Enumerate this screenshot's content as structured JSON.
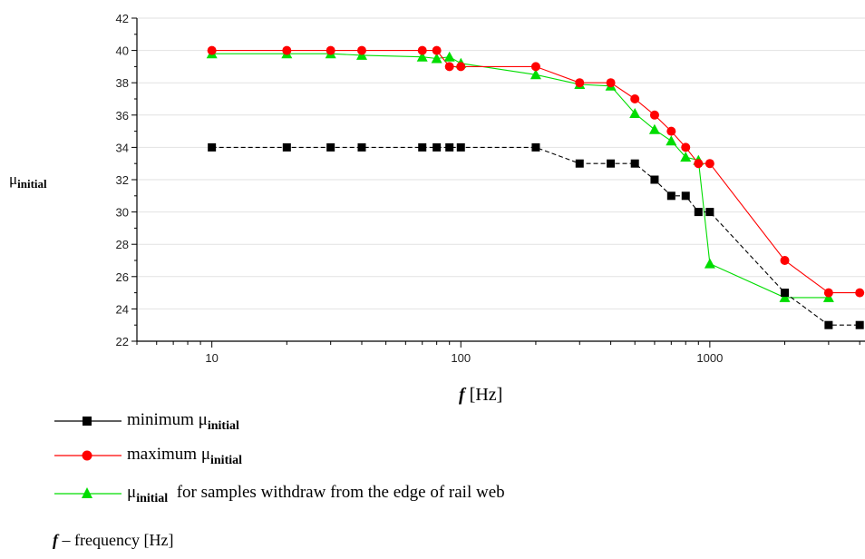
{
  "chart_data": {
    "type": "line",
    "x_scale": "log",
    "xlim": [
      5,
      4200
    ],
    "ylim": [
      22,
      42
    ],
    "y_ticks": [
      22,
      24,
      26,
      28,
      30,
      32,
      34,
      36,
      38,
      40,
      42
    ],
    "x_tick_labels": [
      "10",
      "100",
      "1000"
    ],
    "x_tick_values": [
      10,
      100,
      1000
    ],
    "ylabel": "μ",
    "ylabel_sub": "initial",
    "xlabel": {
      "symbol": "f",
      "unit": "[Hz]"
    },
    "series": [
      {
        "marker": "square",
        "color": "#000000",
        "x": [
          10,
          20,
          30,
          40,
          70,
          80,
          90,
          100,
          200,
          300,
          400,
          500,
          600,
          700,
          800,
          900,
          1000,
          2000,
          3000,
          4000
        ],
        "y": [
          34,
          34,
          34,
          34,
          34,
          34,
          34,
          34,
          34,
          33,
          33,
          33,
          32,
          31,
          31,
          30,
          30,
          25,
          23,
          23
        ]
      },
      {
        "marker": "circle",
        "color": "#ff0000",
        "x": [
          10,
          20,
          30,
          40,
          70,
          80,
          90,
          100,
          200,
          300,
          400,
          500,
          600,
          700,
          800,
          900,
          1000,
          2000,
          3000,
          4000
        ],
        "y": [
          40,
          40,
          40,
          40,
          40,
          40,
          39,
          39,
          39,
          38,
          38,
          37,
          36,
          35,
          34,
          33,
          33,
          27,
          25,
          25
        ]
      },
      {
        "marker": "triangle",
        "color": "#00dd00",
        "x": [
          10,
          20,
          30,
          40,
          70,
          80,
          90,
          100,
          200,
          300,
          400,
          500,
          600,
          700,
          800,
          900,
          1000,
          2000,
          3000
        ],
        "y": [
          39.8,
          39.8,
          39.8,
          39.7,
          39.6,
          39.5,
          39.6,
          39.2,
          38.5,
          37.9,
          37.8,
          36.1,
          35.1,
          34.4,
          33.4,
          33.2,
          26.8,
          24.7,
          24.7
        ]
      }
    ]
  },
  "legend": [
    {
      "label": "minimum ",
      "mu": "μ",
      "sub": "initial",
      "suffix": ""
    },
    {
      "label": "maximum ",
      "mu": "μ",
      "sub": "initial",
      "suffix": ""
    },
    {
      "label": "",
      "mu": "μ",
      "sub": "initial",
      "suffix": "  for samples withdraw from the edge of rail web"
    }
  ],
  "footnote": {
    "symbol": "f",
    "text": " – frequency [Hz]"
  }
}
